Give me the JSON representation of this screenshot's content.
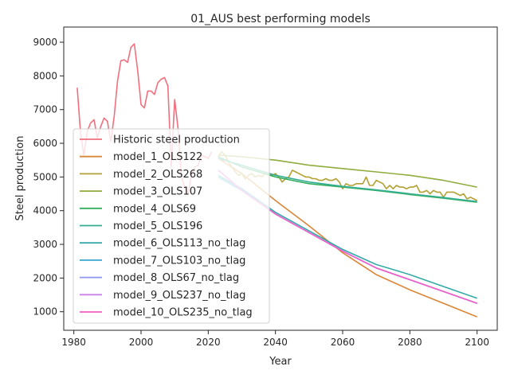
{
  "chart_data": {
    "type": "line",
    "title": "01_AUS best performing models",
    "xlabel": "Year",
    "ylabel": "Steel production",
    "xlim": [
      1977,
      2106
    ],
    "ylim": [
      450,
      9450
    ],
    "xticks": [
      "1980",
      "2000",
      "2020",
      "2040",
      "2060",
      "2080",
      "2100"
    ],
    "yticks": [
      "1000",
      "2000",
      "3000",
      "4000",
      "5000",
      "6000",
      "7000",
      "8000",
      "9000"
    ],
    "grid": false,
    "legend_position": "lower-left",
    "series": [
      {
        "name": "Historic steel production",
        "color": "#f0707e",
        "x": [
          1981,
          1982,
          1983,
          1984,
          1985,
          1986,
          1987,
          1988,
          1989,
          1990,
          1991,
          1992,
          1993,
          1994,
          1995,
          1996,
          1997,
          1998,
          1999,
          2000,
          2001,
          2002,
          2003,
          2004,
          2005,
          2006,
          2007,
          2008,
          2009,
          2010,
          2011,
          2012,
          2013,
          2014,
          2015,
          2016,
          2017,
          2018,
          2019,
          2020,
          2021
        ],
        "y": [
          7650,
          6300,
          5650,
          6350,
          6600,
          6700,
          6150,
          6500,
          6750,
          6650,
          6050,
          6800,
          7850,
          8450,
          8480,
          8400,
          8850,
          8950,
          8150,
          7150,
          7050,
          7550,
          7550,
          7450,
          7800,
          7900,
          7950,
          7700,
          5300,
          7300,
          6450,
          5000,
          4700,
          4500,
          5050,
          5300,
          5350,
          5650,
          5600,
          5550,
          5750
        ]
      },
      {
        "name": "model_1_OLS122",
        "color": "#d98636",
        "x": [
          2023,
          2030,
          2040,
          2050,
          2060,
          2070,
          2080,
          2090,
          2100
        ],
        "y": [
          5550,
          5100,
          4300,
          3550,
          2750,
          2100,
          1650,
          1250,
          850
        ]
      },
      {
        "name": "model_2_OLS268",
        "color": "#b3a034",
        "x": [
          2023,
          2024,
          2025,
          2026,
          2027,
          2028,
          2029,
          2030,
          2031,
          2032,
          2033,
          2034,
          2035,
          2036,
          2037,
          2038,
          2039,
          2040,
          2041,
          2042,
          2043,
          2044,
          2045,
          2046,
          2047,
          2048,
          2049,
          2050,
          2051,
          2052,
          2053,
          2054,
          2055,
          2056,
          2057,
          2058,
          2059,
          2060,
          2061,
          2062,
          2063,
          2064,
          2065,
          2066,
          2067,
          2068,
          2069,
          2070,
          2071,
          2072,
          2073,
          2074,
          2075,
          2076,
          2077,
          2078,
          2079,
          2080,
          2081,
          2082,
          2083,
          2084,
          2085,
          2086,
          2087,
          2088,
          2089,
          2090,
          2091,
          2092,
          2093,
          2094,
          2095,
          2096,
          2097,
          2098,
          2099,
          2100
        ],
        "y": [
          5600,
          5750,
          5650,
          5450,
          5300,
          5150,
          5050,
          5100,
          4950,
          5050,
          5100,
          5000,
          5050,
          5000,
          5150,
          5100,
          5050,
          5100,
          5000,
          4850,
          4950,
          5000,
          5200,
          5150,
          5100,
          5050,
          5000,
          5000,
          4950,
          4950,
          4900,
          4900,
          4950,
          4900,
          4900,
          4950,
          4850,
          4650,
          4800,
          4750,
          4750,
          4800,
          4800,
          4800,
          5000,
          4750,
          4750,
          4900,
          4850,
          4800,
          4650,
          4750,
          4650,
          4750,
          4700,
          4700,
          4650,
          4700,
          4700,
          4750,
          4550,
          4550,
          4600,
          4500,
          4600,
          4550,
          4550,
          4400,
          4550,
          4550,
          4550,
          4500,
          4450,
          4500,
          4350,
          4400,
          4350,
          4300
        ]
      },
      {
        "name": "model_3_OLS107",
        "color": "#8fac3e",
        "x": [
          2023,
          2030,
          2040,
          2050,
          2060,
          2070,
          2080,
          2090,
          2100
        ],
        "y": [
          5650,
          5600,
          5500,
          5350,
          5250,
          5150,
          5050,
          4900,
          4700
        ]
      },
      {
        "name": "model_4_OLS69",
        "color": "#33ae5e",
        "x": [
          2023,
          2030,
          2040,
          2050,
          2060,
          2070,
          2080,
          2090,
          2100
        ],
        "y": [
          5600,
          5300,
          5000,
          4800,
          4700,
          4600,
          4480,
          4370,
          4250
        ]
      },
      {
        "name": "model_5_OLS196",
        "color": "#35ad93",
        "x": [
          2023,
          2030,
          2040,
          2050,
          2060,
          2070,
          2080,
          2090,
          2100
        ],
        "y": [
          5550,
          5350,
          5050,
          4850,
          4720,
          4620,
          4500,
          4390,
          4270
        ]
      },
      {
        "name": "model_6_OLS113_no_tlag",
        "color": "#36aaa9",
        "x": [
          2023,
          2030,
          2040,
          2050,
          2060,
          2070,
          2080,
          2090,
          2100
        ],
        "y": [
          5050,
          4650,
          3950,
          3400,
          2850,
          2400,
          2100,
          1750,
          1400
        ]
      },
      {
        "name": "model_7_OLS103_no_tlag",
        "color": "#38a6cf",
        "x": [
          2023,
          2030,
          2040,
          2050,
          2060,
          2070,
          2080,
          2090,
          2100
        ],
        "y": [
          5000,
          4600,
          3900,
          3350,
          2800,
          2300,
          1950,
          1600,
          1250
        ]
      },
      {
        "name": "model_8_OLS67_no_tlag",
        "color": "#8e96f0",
        "x": [
          2023,
          2030,
          2040,
          2050,
          2060,
          2070,
          2080,
          2090,
          2100
        ],
        "y": [
          5200,
          4600,
          3900,
          3350,
          2800,
          2300,
          1950,
          1600,
          1250
        ]
      },
      {
        "name": "model_9_OLS237_no_tlag",
        "color": "#cb81ec",
        "x": [
          2023,
          2030,
          2040,
          2050,
          2060,
          2070,
          2080,
          2090,
          2100
        ],
        "y": [
          5200,
          4600,
          3900,
          3350,
          2800,
          2300,
          1950,
          1600,
          1250
        ]
      },
      {
        "name": "model_10_OLS235_no_tlag",
        "color": "#f061c9",
        "x": [
          2023,
          2030,
          2040,
          2050,
          2060,
          2070,
          2080,
          2090,
          2100
        ],
        "y": [
          5200,
          4600,
          3900,
          3350,
          2800,
          2300,
          1950,
          1600,
          1250
        ]
      }
    ]
  }
}
